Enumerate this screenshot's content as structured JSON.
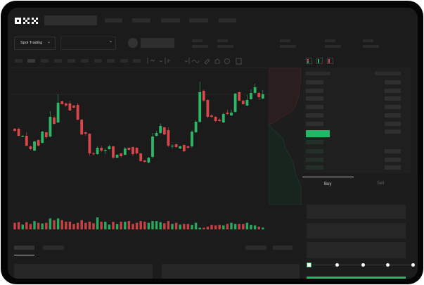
{
  "brand": {
    "logo_text": "OKX"
  },
  "toolbar": {
    "market_selector_label": "Spot Trading",
    "pair_selector_value": ""
  },
  "trade_panel": {
    "tabs": [
      {
        "label": "Buy",
        "active": true
      },
      {
        "label": "Sell",
        "active": false
      }
    ],
    "slider_value_percent": 0,
    "slider_steps": [
      0,
      25,
      50,
      75,
      100
    ]
  },
  "colors": {
    "up": "#2bb866",
    "down": "#d9464a",
    "background": "#1b1b1b",
    "accent": "#22b866"
  },
  "chart_data": {
    "type": "candlestick",
    "title": "",
    "candles": [
      [
        58,
        55,
        59,
        54
      ],
      [
        58,
        48,
        60,
        47
      ],
      [
        47,
        48,
        49,
        46
      ],
      [
        48,
        34,
        53,
        33
      ],
      [
        33,
        29,
        34,
        27
      ],
      [
        27,
        40,
        41,
        26
      ],
      [
        42,
        34,
        43,
        33
      ],
      [
        38,
        54,
        55,
        37
      ],
      [
        53,
        46,
        54,
        44
      ],
      [
        47,
        75,
        83,
        46
      ],
      [
        74,
        65,
        77,
        64
      ],
      [
        67,
        95,
        107,
        66
      ],
      [
        97,
        93,
        98,
        92
      ],
      [
        94,
        91,
        95,
        89
      ],
      [
        94,
        84,
        98,
        83
      ],
      [
        91,
        88,
        92,
        87
      ],
      [
        92,
        71,
        95,
        70
      ],
      [
        71,
        50,
        72,
        49
      ],
      [
        53,
        51,
        54,
        48
      ],
      [
        51,
        23,
        52,
        20
      ],
      [
        23,
        22,
        25,
        20
      ],
      [
        22,
        31,
        33,
        21
      ],
      [
        31,
        27,
        34,
        25
      ],
      [
        27,
        28,
        30,
        22
      ],
      [
        29,
        33,
        35,
        28
      ],
      [
        33,
        17,
        34,
        15
      ],
      [
        17,
        21,
        22,
        16
      ],
      [
        23,
        19,
        24,
        17
      ],
      [
        21,
        30,
        32,
        20
      ],
      [
        31,
        28,
        32,
        27
      ],
      [
        32,
        22,
        33,
        19
      ],
      [
        31,
        23,
        32,
        21
      ],
      [
        23,
        12,
        24,
        11
      ],
      [
        13,
        11,
        14,
        10
      ],
      [
        10,
        17,
        18,
        9
      ],
      [
        18,
        47,
        52,
        16
      ],
      [
        48,
        52,
        55,
        47
      ],
      [
        52,
        62,
        66,
        51
      ],
      [
        60,
        50,
        61,
        49
      ],
      [
        56,
        34,
        60,
        32
      ],
      [
        33,
        34,
        36,
        30
      ],
      [
        36,
        32,
        37,
        31
      ],
      [
        30,
        33,
        34,
        29
      ],
      [
        35,
        26,
        36,
        25
      ],
      [
        33,
        31,
        34,
        30
      ],
      [
        33,
        54,
        56,
        31
      ],
      [
        53,
        68,
        70,
        52
      ],
      [
        68,
        110,
        125,
        66
      ],
      [
        112,
        98,
        114,
        96
      ],
      [
        99,
        75,
        100,
        73
      ],
      [
        77,
        75,
        79,
        73
      ],
      [
        75,
        69,
        76,
        67
      ],
      [
        71,
        69,
        73,
        68
      ],
      [
        67,
        79,
        81,
        66
      ],
      [
        81,
        79,
        85,
        78
      ],
      [
        77,
        81,
        85,
        76
      ],
      [
        82,
        108,
        109,
        81
      ],
      [
        110,
        98,
        111,
        97
      ],
      [
        98,
        93,
        99,
        92
      ],
      [
        91,
        99,
        106,
        90
      ],
      [
        100,
        109,
        114,
        99
      ],
      [
        109,
        117,
        122,
        108
      ],
      [
        109,
        103,
        110,
        99
      ],
      [
        101,
        107,
        113,
        100
      ]
    ],
    "candle_format": [
      "open",
      "close",
      "high",
      "low"
    ],
    "volumes": [
      30,
      33,
      22,
      33,
      25,
      38,
      30,
      27,
      30,
      50,
      42,
      50,
      42,
      35,
      35,
      25,
      30,
      42,
      30,
      35,
      28,
      55,
      35,
      35,
      22,
      35,
      25,
      35,
      35,
      38,
      25,
      30,
      38,
      35,
      30,
      38,
      38,
      33,
      28,
      38,
      25,
      30,
      22,
      25,
      25,
      20,
      30,
      8,
      8,
      12,
      20,
      18,
      20,
      18,
      25,
      30,
      25,
      25,
      25,
      30,
      20,
      18,
      12,
      8
    ],
    "ylim": [
      0,
      130
    ],
    "grid": true
  }
}
